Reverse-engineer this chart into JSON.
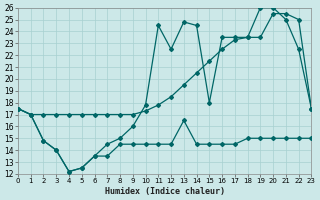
{
  "xlabel": "Humidex (Indice chaleur)",
  "xlim": [
    0,
    23
  ],
  "ylim": [
    12,
    26
  ],
  "xticks": [
    0,
    1,
    2,
    3,
    4,
    5,
    6,
    7,
    8,
    9,
    10,
    11,
    12,
    13,
    14,
    15,
    16,
    17,
    18,
    19,
    20,
    21,
    22,
    23
  ],
  "yticks": [
    12,
    13,
    14,
    15,
    16,
    17,
    18,
    19,
    20,
    21,
    22,
    23,
    24,
    25,
    26
  ],
  "bg_color": "#cce8e8",
  "line_color": "#006666",
  "grid_color": "#a8d0d0",
  "line1_x": [
    0,
    1,
    2,
    3,
    4,
    5,
    6,
    7,
    8,
    9,
    10,
    11,
    12,
    13,
    14,
    15,
    16,
    17,
    18,
    19,
    20,
    21,
    22,
    23
  ],
  "line1_y": [
    17.5,
    17.0,
    17.0,
    17.0,
    17.0,
    17.0,
    17.0,
    17.0,
    17.0,
    17.0,
    17.3,
    17.8,
    18.5,
    19.5,
    20.5,
    21.5,
    22.5,
    23.3,
    23.5,
    23.5,
    25.5,
    25.5,
    25.0,
    17.5
  ],
  "line2_x": [
    0,
    1,
    2,
    3,
    4,
    5,
    6,
    7,
    8,
    9,
    10,
    11,
    12,
    13,
    14,
    15,
    16,
    17,
    18,
    19,
    20,
    21,
    22,
    23
  ],
  "line2_y": [
    17.5,
    17.0,
    14.8,
    14.0,
    12.2,
    12.5,
    13.5,
    14.5,
    15.0,
    16.0,
    17.8,
    24.5,
    22.5,
    24.8,
    24.5,
    18.0,
    23.5,
    23.5,
    23.5,
    26.0,
    26.0,
    25.0,
    22.5,
    17.5
  ],
  "line3_x": [
    0,
    1,
    2,
    3,
    4,
    5,
    6,
    7,
    8,
    9,
    10,
    11,
    12,
    13,
    14,
    15,
    16,
    17,
    18,
    19,
    20,
    21,
    22,
    23
  ],
  "line3_y": [
    17.5,
    17.0,
    14.8,
    14.0,
    12.2,
    12.5,
    13.5,
    13.5,
    14.5,
    14.5,
    14.5,
    14.5,
    14.5,
    16.5,
    14.5,
    14.5,
    14.5,
    14.5,
    15.0,
    15.0,
    15.0,
    15.0,
    15.0,
    15.0
  ]
}
